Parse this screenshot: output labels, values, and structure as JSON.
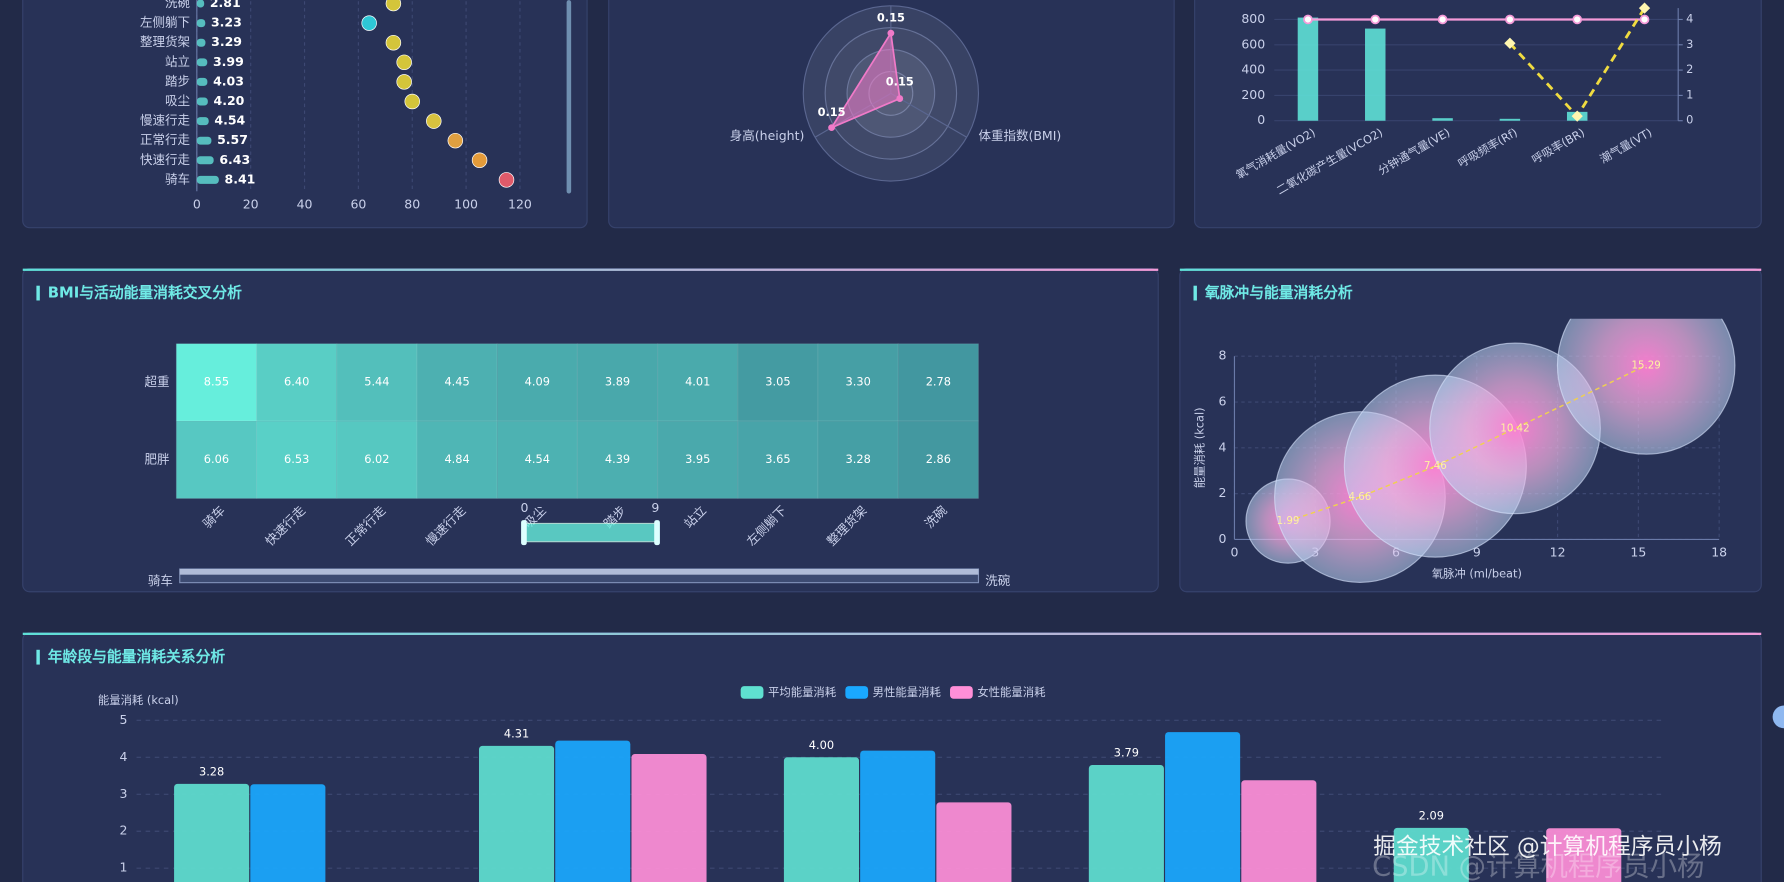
{
  "watermark": "掘金技术社区 @计算机程序员小杨",
  "watermark_shadow": "CSDN @计算机程序员小杨",
  "chart_data": [
    {
      "type": "dot_bar",
      "categories": [
        "洗碗",
        "左侧躺下",
        "整理货架",
        "站立",
        "踏步",
        "吸尘",
        "慢速行走",
        "正常行走",
        "快速行走",
        "骑车"
      ],
      "values": [
        2.81,
        3.23,
        3.29,
        3.99,
        4.03,
        4.2,
        4.54,
        5.57,
        6.43,
        8.41
      ],
      "value_labels": [
        "2.81",
        "3.23",
        "3.29",
        "3.99",
        "4.03",
        "4.20",
        "4.54",
        "5.57",
        "6.43",
        "8.41"
      ],
      "dot_values": [
        73,
        64,
        73,
        77,
        77,
        80,
        88,
        96,
        105,
        115
      ],
      "colors": [
        "#d4c53a",
        "#2ec7d6",
        "#d4c53a",
        "#d4c53a",
        "#d4c53a",
        "#d4c53a",
        "#d8c23e",
        "#e0a040",
        "#e49b3a",
        "#e05a6a"
      ],
      "bar_color": "#5ed6d0",
      "xlim": [
        0,
        120
      ],
      "xticks": [
        0,
        20,
        40,
        60,
        80,
        100,
        120
      ],
      "grid": true
    },
    {
      "type": "radar",
      "indicators": [
        null,
        "体重指数(BMI)",
        "身高(height)"
      ],
      "max": [
        0.218,
        1.28,
        0.192
      ],
      "values": [
        0.15,
        0.15,
        0.15
      ],
      "color": "#f07ac8"
    },
    {
      "type": "combo",
      "categories": [
        "氧气消耗量(VO2)",
        "二氧化碳产生量(VCO2)",
        "分钟通气量(VE)",
        "呼吸频率(Rf)",
        "呼吸率(BR)",
        "潮气量(VT)"
      ],
      "series": [
        {
          "kind": "bar",
          "color": "#5ee0d6",
          "values": [
            815,
            728,
            20,
            15,
            70,
            0
          ]
        },
        {
          "kind": "line",
          "axis": "y2",
          "color": "#f49ad8",
          "values": [
            4,
            4,
            4,
            4,
            4,
            4
          ]
        },
        {
          "kind": "dashed",
          "axis": "y2",
          "color": "#f0dc40",
          "values": [
            null,
            null,
            null,
            3.06,
            0.18,
            4.45
          ]
        }
      ],
      "ylim": [
        0,
        800
      ],
      "yticks": [
        0,
        200,
        400,
        600,
        800
      ],
      "y2lim": [
        0,
        4
      ],
      "y2ticks": [
        0,
        1,
        2,
        3,
        4
      ]
    },
    {
      "type": "heatmap",
      "title": "BMI与活动能量消耗交叉分析",
      "x_categories": [
        "骑车",
        "快速行走",
        "正常行走",
        "慢速行走",
        "吸尘",
        "踏步",
        "站立",
        "左侧躺下",
        "整理货架",
        "洗碗"
      ],
      "y_categories": [
        "超重",
        "肥胖"
      ],
      "values": [
        [
          8.55,
          6.4,
          5.44,
          4.45,
          4.09,
          3.89,
          4.01,
          3.05,
          3.3,
          2.78
        ],
        [
          6.06,
          6.53,
          6.02,
          4.84,
          4.54,
          4.39,
          3.95,
          3.65,
          3.28,
          2.86
        ]
      ],
      "value_labels": [
        [
          "8.55",
          "6.40",
          "5.44",
          "4.45",
          "4.09",
          "3.89",
          "4.01",
          "3.05",
          "3.30",
          "2.78"
        ],
        [
          "6.06",
          "6.53",
          "6.02",
          "4.84",
          "4.54",
          "4.39",
          "3.95",
          "3.65",
          "3.28",
          "2.86"
        ]
      ],
      "visual_range": [
        0,
        9
      ],
      "colors": [
        "#3f8f9a",
        "#66eedc"
      ]
    },
    {
      "type": "bubble",
      "title": "氧脉冲与能量消耗分析",
      "x": [
        1.99,
        4.66,
        7.46,
        10.42,
        15.29
      ],
      "values": [
        0.8,
        1.85,
        3.2,
        4.85,
        7.6
      ],
      "sizes": [
        37,
        75,
        80,
        75,
        78
      ],
      "xlim": [
        0,
        18
      ],
      "xticks": [
        0,
        3,
        6,
        9,
        12,
        15,
        18
      ],
      "ylim": [
        0,
        8
      ],
      "yticks": [
        0,
        2,
        4,
        6,
        8
      ],
      "xlabel": "氧脉冲 (ml/beat)",
      "ylabel": "能量消耗 (kcal)",
      "line_color": "#f0d050",
      "grid": true
    },
    {
      "type": "grouped_bar",
      "title": "年龄段与能量消耗关系分析",
      "categories": [
        null,
        null,
        null,
        null,
        null
      ],
      "ylabel": "能量消耗 (kcal)",
      "ylim": [
        0,
        5
      ],
      "yticks": [
        0,
        1,
        2,
        3,
        4,
        5
      ],
      "grid": true,
      "series": [
        {
          "name": "平均能量消耗",
          "color": "#5fe0d0",
          "values": [
            3.28,
            4.31,
            4.0,
            3.79,
            2.09
          ],
          "value_labels": [
            "3.28",
            "4.31",
            "4.00",
            "3.79",
            "2.09"
          ]
        },
        {
          "name": "男性能量消耗",
          "color": "#1aa8ff",
          "values": [
            3.27,
            4.45,
            4.18,
            4.68,
            null
          ]
        },
        {
          "name": "女性能量消耗",
          "color": "#ff8fd8",
          "values": [
            null,
            4.09,
            2.78,
            3.38,
            2.08
          ]
        }
      ]
    }
  ]
}
